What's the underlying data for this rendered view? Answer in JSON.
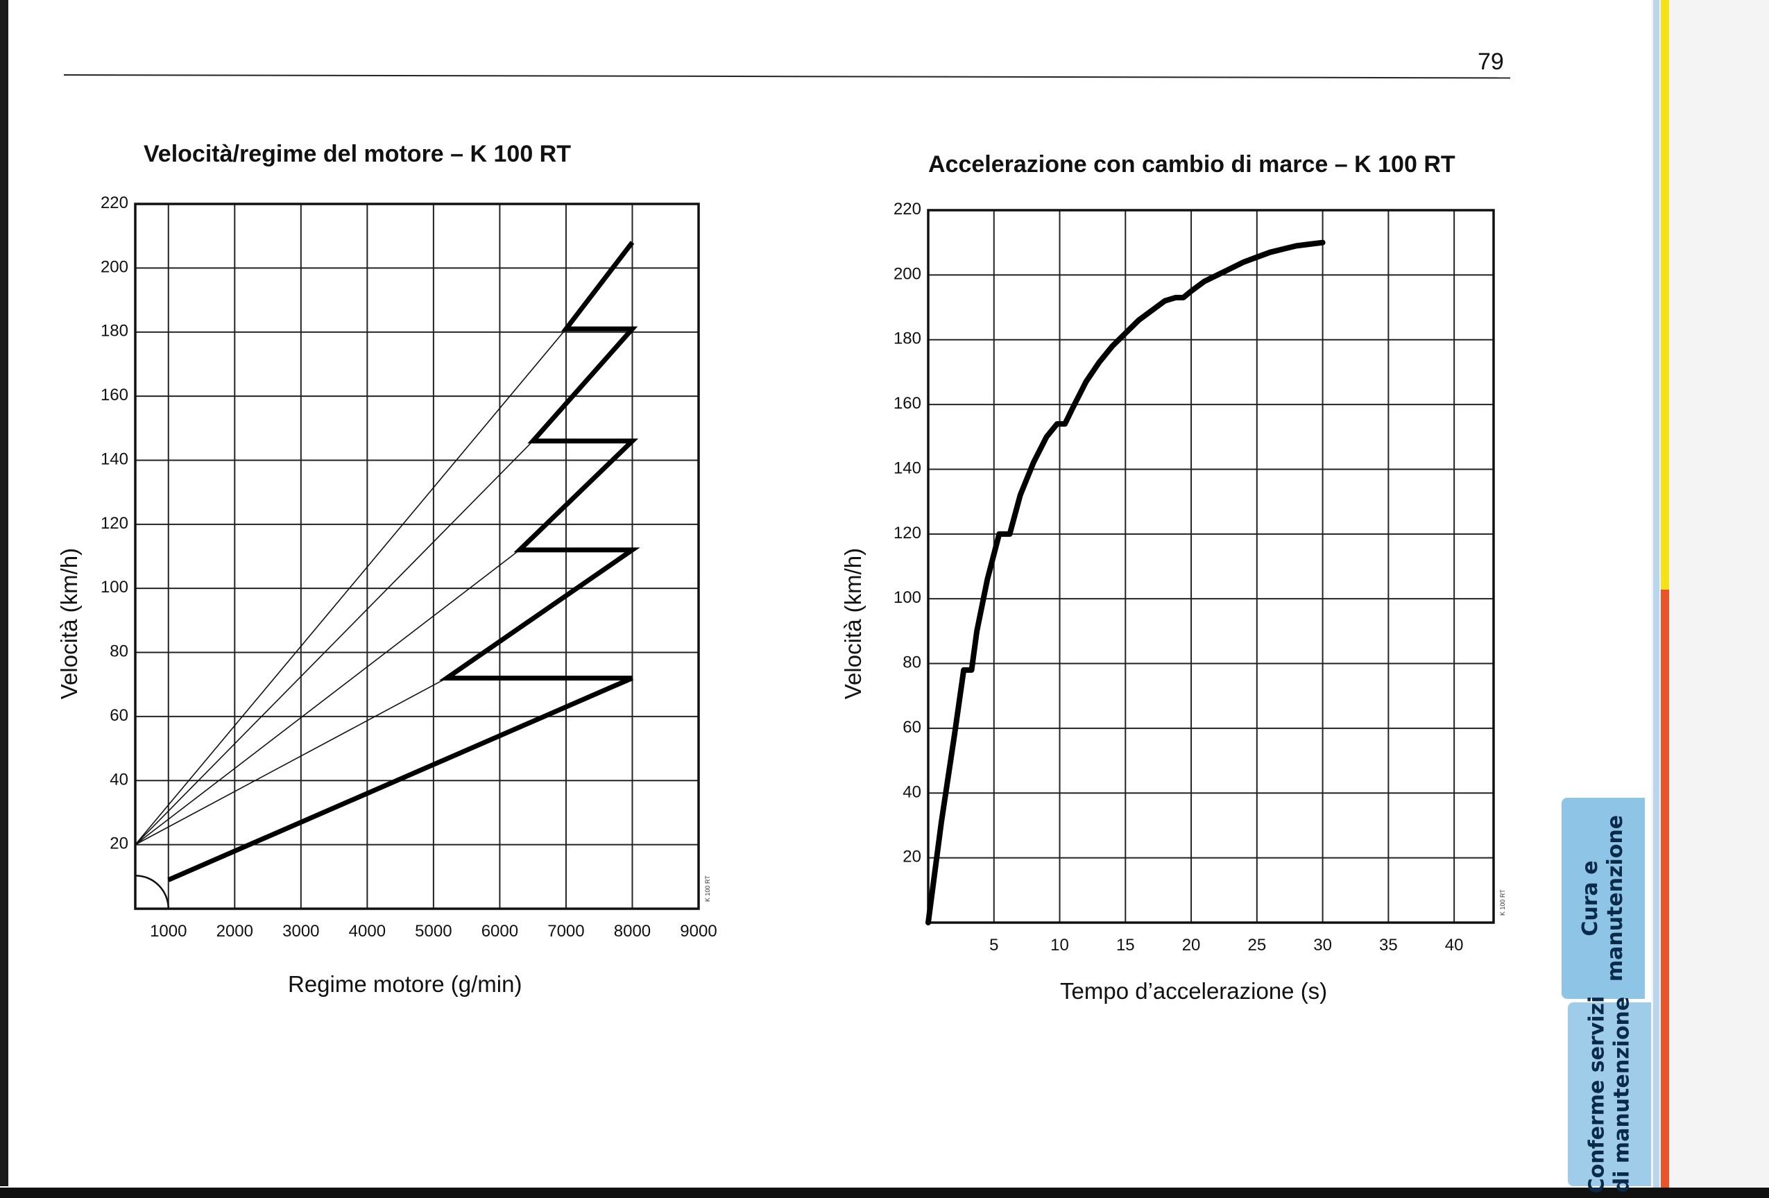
{
  "page": {
    "number": "79"
  },
  "side_tabs": [
    {
      "lines": [
        "Cura e",
        "manutenzione"
      ]
    },
    {
      "lines": [
        "Conferme servizi",
        "di manutenzione"
      ]
    }
  ],
  "colors": {
    "tab_blue": "#8ec4e6",
    "edge_yellow": "#f3e21a",
    "edge_orange": "#e9552a",
    "ink": "#111111"
  },
  "chart_data": [
    {
      "type": "line",
      "title": "Velocità/regime del motore – K 100 RT",
      "xlabel": "Regime motore (g/min)",
      "ylabel": "Velocità (km/h)",
      "code_label": "K 100 RT",
      "x_ticks": [
        "1000",
        "2000",
        "3000",
        "4000",
        "5000",
        "6000",
        "7000",
        "8000",
        "9000"
      ],
      "y_ticks": [
        "20",
        "40",
        "60",
        "80",
        "100",
        "120",
        "140",
        "160",
        "180",
        "200",
        "220"
      ],
      "xlim": [
        500,
        9000
      ],
      "ylim": [
        0,
        220
      ],
      "grid": true,
      "series": [
        {
          "role": "shift-path",
          "points": [
            [
              1000,
              9
            ],
            [
              8000,
              72
            ],
            [
              5200,
              72
            ],
            [
              8000,
              112
            ],
            [
              6300,
              112
            ],
            [
              8000,
              146
            ],
            [
              6500,
              146
            ],
            [
              8000,
              181
            ],
            [
              7000,
              181
            ],
            [
              8000,
              208
            ]
          ]
        }
      ],
      "gear_lines": [
        {
          "from": [
            500,
            20
          ],
          "to": [
            5200,
            72
          ]
        },
        {
          "from": [
            500,
            20
          ],
          "to": [
            6300,
            112
          ]
        },
        {
          "from": [
            500,
            20
          ],
          "to": [
            6500,
            146
          ]
        },
        {
          "from": [
            500,
            20
          ],
          "to": [
            7000,
            181
          ]
        }
      ],
      "start_arc": {
        "center": [
          500,
          0
        ],
        "radius_rpm": 500
      }
    },
    {
      "type": "line",
      "title": "Accelerazione con cambio di marce – K 100 RT",
      "xlabel": "Tempo d’accelerazione (s)",
      "ylabel": "Velocità (km/h)",
      "code_label": "K 100 RT",
      "x_ticks": [
        "5",
        "10",
        "15",
        "20",
        "25",
        "30",
        "35",
        "40"
      ],
      "y_ticks": [
        "20",
        "40",
        "60",
        "80",
        "100",
        "120",
        "140",
        "160",
        "180",
        "200",
        "220"
      ],
      "xlim": [
        0,
        43
      ],
      "ylim": [
        0,
        220
      ],
      "grid": true,
      "series": [
        {
          "role": "acceleration",
          "points": [
            [
              0,
              0
            ],
            [
              1,
              31
            ],
            [
              2,
              58
            ],
            [
              2.7,
              78
            ],
            [
              3.3,
              78
            ],
            [
              3.7,
              90
            ],
            [
              4.5,
              106
            ],
            [
              5.4,
              120
            ],
            [
              6.2,
              120
            ],
            [
              7,
              132
            ],
            [
              8,
              142
            ],
            [
              9,
              150
            ],
            [
              9.8,
              154
            ],
            [
              10.4,
              154
            ],
            [
              11,
              159
            ],
            [
              12,
              167
            ],
            [
              13,
              173
            ],
            [
              14,
              178
            ],
            [
              15,
              182
            ],
            [
              16,
              186
            ],
            [
              17,
              189
            ],
            [
              18,
              192
            ],
            [
              18.8,
              193
            ],
            [
              19.4,
              193
            ],
            [
              20,
              195
            ],
            [
              21,
              198
            ],
            [
              22,
              200
            ],
            [
              23,
              202
            ],
            [
              24,
              204
            ],
            [
              25,
              205.5
            ],
            [
              26,
              207
            ],
            [
              27,
              208
            ],
            [
              28,
              209
            ],
            [
              29,
              209.5
            ],
            [
              30,
              210
            ]
          ]
        }
      ]
    }
  ]
}
